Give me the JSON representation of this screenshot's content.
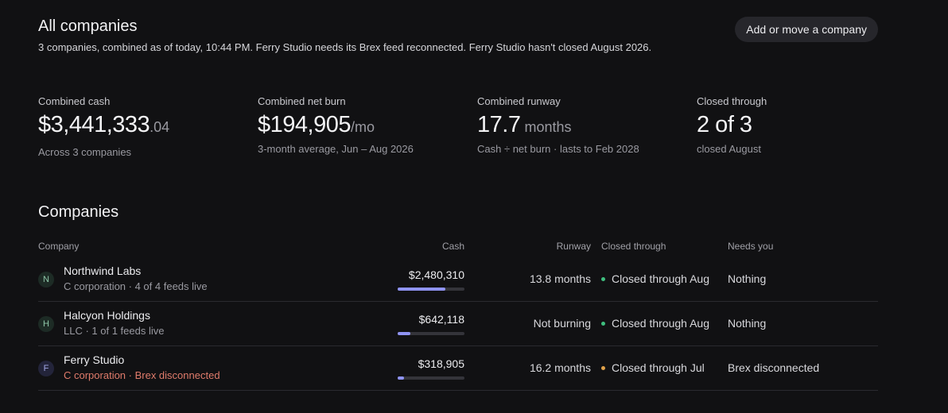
{
  "header": {
    "title": "All companies",
    "subtitle": "3 companies, combined as of today, 10:44 PM. Ferry Studio needs its Brex feed reconnected. Ferry Studio hasn't closed August 2026.",
    "add_button": "Add or move a company"
  },
  "stats": {
    "cash": {
      "label": "Combined cash",
      "value": "$3,441,333",
      "suffix": ".04",
      "sub": "Across 3 companies"
    },
    "burn": {
      "label": "Combined net burn",
      "value": "$194,905",
      "suffix": "/mo",
      "sub": "3-month average, Jun – Aug 2026"
    },
    "runway": {
      "label": "Combined runway",
      "value": "17.7",
      "suffix": " months",
      "sub": "Cash ÷ net burn · lasts to Feb 2028"
    },
    "closed": {
      "label": "Closed through",
      "value": "2 of 3",
      "suffix": "",
      "sub": "closed August"
    }
  },
  "companies_section": {
    "title": "Companies",
    "columns": {
      "company": "Company",
      "cash": "Cash",
      "runway": "Runway",
      "closed": "Closed through",
      "needs": "Needs you"
    },
    "rows": [
      {
        "initial": "N",
        "name": "Northwind Labs",
        "meta": "C corporation · 4 of 4 feeds live",
        "meta_warn": false,
        "cash": "$2,480,310",
        "cash_share": 0.72,
        "runway": "13.8 months",
        "closed": "Closed through Aug",
        "closed_color": "#3fbf7f",
        "needs": "Nothing"
      },
      {
        "initial": "H",
        "name": "Halcyon Holdings",
        "meta": "LLC · 1 of 1 feeds live",
        "meta_warn": false,
        "cash": "$642,118",
        "cash_share": 0.19,
        "runway": "Not burning",
        "closed": "Closed through Aug",
        "closed_color": "#3fbf7f",
        "needs": "Nothing"
      },
      {
        "initial": "F",
        "name": "Ferry Studio",
        "meta": "C corporation · Brex disconnected",
        "meta_warn": true,
        "cash": "$318,905",
        "cash_share": 0.09,
        "runway": "16.2 months",
        "closed": "Closed through Jul",
        "closed_color": "#e0a24a",
        "needs": "Brex disconnected"
      }
    ]
  }
}
